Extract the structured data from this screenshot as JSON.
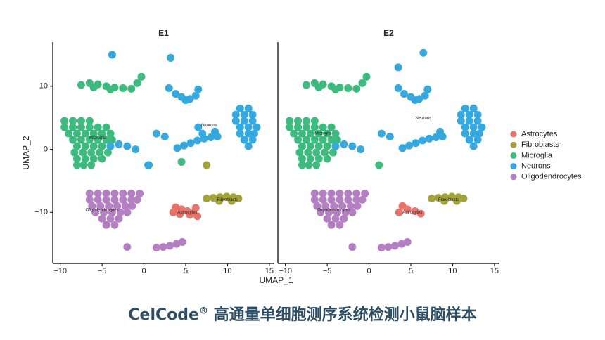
{
  "chart_data": [
    {
      "type": "scatter",
      "title": "E1",
      "x_label": "UMAP_1",
      "y_label": "UMAP_2",
      "xlim": [
        -10.9,
        15.6
      ],
      "ylim": [
        -18.1,
        17
      ],
      "xticks": [
        {
          "value": -10,
          "label": "−10"
        },
        {
          "value": -5,
          "label": "−5"
        },
        0,
        5,
        10,
        15
      ],
      "yticks": [
        {
          "value": -10,
          "label": "−10"
        },
        0,
        10
      ],
      "series": [
        {
          "name": "Astrocytes",
          "color": "#e8736b",
          "x": [
            3.8,
            4.5,
            5.2,
            5.9,
            6.4,
            5.5,
            4.3,
            6.2,
            3.5
          ],
          "values": [
            -9.2,
            -9.5,
            -9.8,
            -10.1,
            -10.6,
            -10.4,
            -10.3,
            -9.3,
            -10
          ]
        },
        {
          "name": "Fibroblasts",
          "color": "#a3a33a",
          "x": [
            7.5,
            8.3,
            9.1,
            9.9,
            10.7,
            11.3,
            9,
            10.5,
            7.5
          ],
          "values": [
            -7.8,
            -7.7,
            -7.6,
            -7.5,
            -7.6,
            -7.8,
            -8.2,
            -8.2,
            -2.5
          ]
        },
        {
          "name": "Microglia",
          "color": "#3dbb7e",
          "x": [
            -7.5,
            -6.5,
            -5.5,
            -4.5,
            -3.5,
            -2.5,
            -1.5,
            -0.8,
            -0.3,
            -6,
            -4,
            -9.5,
            -8.5,
            -7.5,
            -6.5,
            -9.5,
            -8.5,
            -7.5,
            -6.5,
            -5.5,
            -4.5,
            -9,
            -8,
            -7,
            -6,
            -5,
            -4,
            -8.5,
            -7.5,
            -6.5,
            -5.5,
            -4.5,
            -3.8,
            -8,
            -7,
            -6,
            -5,
            -4,
            -8.3,
            -7.3,
            -6.3,
            -5.3,
            -4.3,
            -8,
            -7,
            -6,
            -5,
            -8,
            -7.2,
            -6.3,
            4.5,
            0.6
          ],
          "values": [
            10.2,
            10.5,
            10.3,
            10,
            9.8,
            9.7,
            9.6,
            10.5,
            11.5,
            9.8,
            9.5,
            4.5,
            4.5,
            4.5,
            4.5,
            3.5,
            3.5,
            3.5,
            3.5,
            3.5,
            3.5,
            2.5,
            2.5,
            2.5,
            2.5,
            2.5,
            2.5,
            1.5,
            1.5,
            1.5,
            1.5,
            1.5,
            1.5,
            0.5,
            0.5,
            0.5,
            0.5,
            0.5,
            -0.5,
            -0.5,
            -0.5,
            -0.5,
            -0.5,
            -1.5,
            -1.5,
            -1.5,
            -1.5,
            -2.5,
            -2.5,
            -2.5,
            -2,
            -2.5
          ]
        },
        {
          "name": "Neurons",
          "color": "#36a8e0",
          "x": [
            11.5,
            12.5,
            11,
            12,
            13,
            11,
            12,
            13,
            11.5,
            12.5,
            13.5,
            11.5,
            12.5,
            13.2,
            12,
            13,
            12.5,
            3,
            3.8,
            4.5,
            5.5,
            6.2,
            6.5,
            5,
            4,
            4.8,
            5.6,
            6.4,
            7.2,
            8,
            8.8,
            8.5,
            7,
            6.5,
            1.5,
            2.5,
            -4,
            -3,
            -2,
            -1,
            0.5,
            -3.8,
            3.2
          ],
          "values": [
            6.5,
            6.5,
            5.5,
            5.5,
            5.5,
            4.5,
            4.5,
            4.5,
            3.5,
            3.5,
            3.5,
            2.5,
            2.5,
            2.5,
            1.5,
            1.5,
            0.5,
            9.7,
            8.8,
            8.3,
            8,
            8.5,
            9.5,
            7.8,
            0.2,
            0.6,
            1,
            1.4,
            1.7,
            1.9,
            2,
            2.8,
            2.5,
            3.5,
            2.5,
            2,
            0.5,
            0.8,
            0.5,
            0,
            -2.5,
            15,
            14.5
          ]
        },
        {
          "name": "Oligodendrocytes",
          "color": "#b57fc3",
          "x": [
            -6.5,
            -5.5,
            -4.5,
            -3.5,
            -2.5,
            -1.5,
            -0.5,
            -6.5,
            -5.5,
            -4.5,
            -3.5,
            -2.5,
            -1.5,
            -0.8,
            -6.2,
            -5.2,
            -4.2,
            -3.2,
            -2.2,
            -1.4,
            -5.8,
            -4.8,
            -3.8,
            -2.8,
            -2,
            -5,
            -4,
            -3,
            -4.5,
            -3.5,
            1.5,
            2.3,
            3.1,
            3.9,
            4.6,
            -2
          ],
          "values": [
            -7,
            -7,
            -7,
            -7,
            -7,
            -7,
            -7,
            -8,
            -8,
            -8,
            -8,
            -8,
            -8,
            -8,
            -9,
            -9,
            -9,
            -9,
            -9,
            -9,
            -10,
            -10,
            -10,
            -10,
            -10,
            -11,
            -11,
            -11,
            -12,
            -12,
            -15.6,
            -15.5,
            -15.3,
            -15,
            -14.7,
            -15.5
          ]
        }
      ],
      "annotations": [
        {
          "text": "Microglia",
          "x": -5.5,
          "y": 1.8
        },
        {
          "text": "Neurons",
          "x": 7.8,
          "y": 3.8
        },
        {
          "text": "Oligodendrocytes",
          "x": -5,
          "y": -9.6
        },
        {
          "text": "Fibroblasts",
          "x": 10,
          "y": -8
        },
        {
          "text": "Astrocytes",
          "x": 5.2,
          "y": -10
        }
      ]
    },
    {
      "type": "scatter",
      "title": "E2",
      "xlim": [
        -10.9,
        15.6
      ],
      "ylim": [
        -18.1,
        17
      ],
      "xticks": [
        {
          "value": -10,
          "label": "−10"
        },
        {
          "value": -5,
          "label": "−5"
        },
        0,
        5,
        10,
        15
      ],
      "series": [
        {
          "color": "#e8736b",
          "x": [
            4,
            4.6,
            5.5,
            6.2,
            3.6
          ],
          "values": [
            -9,
            -9.5,
            -9.8,
            -10.2,
            -10
          ]
        },
        {
          "color": "#a3a33a",
          "x": [
            7.5,
            8.3,
            9.1,
            9.9,
            10.7,
            11.3,
            9,
            10.5
          ],
          "values": [
            -7.8,
            -7.7,
            -7.6,
            -7.5,
            -7.6,
            -7.8,
            -8.2,
            -8.2
          ]
        },
        {
          "color": "#3dbb7e",
          "x": [
            -7.5,
            -6.5,
            -5.5,
            -4.5,
            -3.5,
            -2.5,
            -1.5,
            -0.8,
            -0.3,
            -6,
            -4,
            -9.5,
            -8.5,
            -7.5,
            -6.5,
            -9.5,
            -8.5,
            -7.5,
            -6.5,
            -5.5,
            -4.5,
            -9,
            -8,
            -7,
            -6,
            -5,
            -4,
            -8.5,
            -7.5,
            -6.5,
            -5.5,
            -4.5,
            -3.8,
            -8,
            -7,
            -6,
            -5,
            -4,
            -8.3,
            -7.3,
            -6.3,
            -5.3,
            -4.3,
            -8,
            -7,
            -6,
            -5,
            -8,
            -7.2,
            -6.3,
            1.2
          ],
          "values": [
            10.2,
            10.5,
            10.3,
            10,
            9.8,
            9.7,
            9.6,
            10.5,
            11.5,
            9.8,
            9.5,
            4.5,
            4.5,
            4.5,
            4.5,
            3.5,
            3.5,
            3.5,
            3.5,
            3.5,
            3.5,
            2.5,
            2.5,
            2.5,
            2.5,
            2.5,
            2.5,
            1.5,
            1.5,
            1.5,
            1.5,
            1.5,
            1.5,
            0.5,
            0.5,
            0.5,
            0.5,
            0.5,
            -0.5,
            -0.5,
            -0.5,
            -0.5,
            -0.5,
            -1.5,
            -1.5,
            -1.5,
            -1.5,
            -2.5,
            -2.5,
            -2.5,
            -2.5
          ]
        },
        {
          "color": "#36a8e0",
          "x": [
            11.5,
            12.5,
            11,
            12,
            13,
            11,
            12,
            13,
            11.5,
            12.5,
            13.5,
            11.5,
            12.5,
            13.2,
            12,
            13,
            12.5,
            3.5,
            4.2,
            5,
            6,
            6.7,
            7,
            5.5,
            4,
            4.8,
            5.6,
            6.4,
            7.2,
            8,
            8.8,
            8.5,
            1.5,
            2.5,
            -4,
            -3,
            -2,
            -1,
            6.5,
            3.5
          ],
          "values": [
            6.5,
            6.5,
            5.5,
            5.5,
            5.5,
            4.5,
            4.5,
            4.5,
            3.5,
            3.5,
            3.5,
            2.5,
            2.5,
            2.5,
            1.5,
            1.5,
            0.5,
            9.7,
            8.8,
            8.3,
            8,
            8.5,
            9.5,
            7.8,
            0.2,
            0.6,
            1,
            1.4,
            1.7,
            1.9,
            2,
            2.8,
            2.5,
            2,
            0.5,
            0.8,
            0.5,
            0,
            15.3,
            13
          ]
        },
        {
          "color": "#b57fc3",
          "x": [
            -6.5,
            -5.5,
            -4.5,
            -3.5,
            -2.5,
            -1.5,
            -0.5,
            -6.5,
            -5.5,
            -4.5,
            -3.5,
            -2.5,
            -1.5,
            -0.8,
            -6.2,
            -5.2,
            -4.2,
            -3.2,
            -2.2,
            -1.4,
            -5.8,
            -4.8,
            -3.8,
            -2.8,
            -2,
            -5,
            -4,
            -3,
            -4.5,
            -3.5,
            1.5,
            2.3,
            3.1,
            3.9,
            4.6,
            -2
          ],
          "values": [
            -7,
            -7,
            -7,
            -7,
            -7,
            -7,
            -7,
            -8,
            -8,
            -8,
            -8,
            -8,
            -8,
            -8,
            -9,
            -9,
            -9,
            -9,
            -9,
            -9,
            -10,
            -10,
            -10,
            -10,
            -10,
            -11,
            -11,
            -11,
            -12,
            -12,
            -15.6,
            -15.5,
            -15.3,
            -15,
            -14.7,
            -15.5
          ]
        }
      ],
      "annotations": [
        {
          "text": "Microglia",
          "x": -5.5,
          "y": 2.5
        },
        {
          "text": "Neurons",
          "x": 6.5,
          "y": 5
        },
        {
          "text": "Oligodendrocytes",
          "x": -4.2,
          "y": -9.6
        },
        {
          "text": "Fibroblasts",
          "x": 9.5,
          "y": -8
        },
        {
          "text": "Astrocytes",
          "x": 5.2,
          "y": -10
        }
      ]
    }
  ],
  "caption": {
    "brand": "CelCode",
    "mark": "®",
    "text": " 高通量单细胞测序系统检测小鼠脑样本"
  }
}
